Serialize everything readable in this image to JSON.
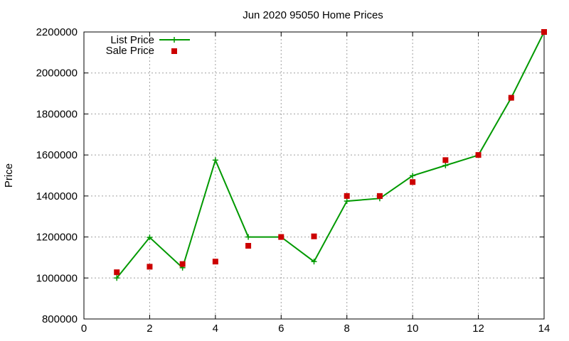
{
  "chart_data": {
    "type": "line",
    "title": "Jun 2020 95050 Home Prices",
    "xlabel": "",
    "ylabel": "Price",
    "xlim": [
      0,
      14
    ],
    "ylim": [
      800000,
      2200000
    ],
    "x_ticks": [
      0,
      2,
      4,
      6,
      8,
      10,
      12,
      14
    ],
    "y_ticks": [
      800000,
      1000000,
      1200000,
      1400000,
      1600000,
      1800000,
      2000000,
      2200000
    ],
    "grid": true,
    "legend_position": "top-left",
    "series": [
      {
        "name": "List Price",
        "style": "line-with-plus-markers",
        "color": "#009900",
        "x": [
          1,
          2,
          3,
          4,
          5,
          6,
          7,
          8,
          9,
          10,
          11,
          12,
          13,
          14
        ],
        "y": [
          1000000,
          1198000,
          1050000,
          1575000,
          1200000,
          1200000,
          1080000,
          1375000,
          1388000,
          1499000,
          1549000,
          1599000,
          1879000,
          2200000
        ]
      },
      {
        "name": "Sale Price",
        "style": "square-markers",
        "color": "#cc0000",
        "x": [
          1,
          2,
          3,
          4,
          5,
          6,
          7,
          8,
          9,
          10,
          11,
          12,
          13,
          14
        ],
        "y": [
          1028000,
          1055000,
          1068000,
          1080000,
          1157000,
          1200000,
          1203000,
          1400000,
          1400000,
          1468000,
          1575000,
          1600000,
          1879000,
          2200000
        ]
      }
    ]
  }
}
